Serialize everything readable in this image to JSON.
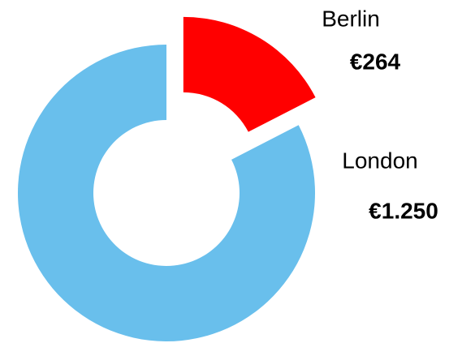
{
  "chart_data": {
    "type": "donut",
    "categories": [
      "Berlin",
      "London"
    ],
    "values": [
      264,
      1250
    ],
    "value_labels": [
      "€264",
      "€1.250"
    ],
    "colors": [
      "#ff0000",
      "#69bfec"
    ]
  }
}
